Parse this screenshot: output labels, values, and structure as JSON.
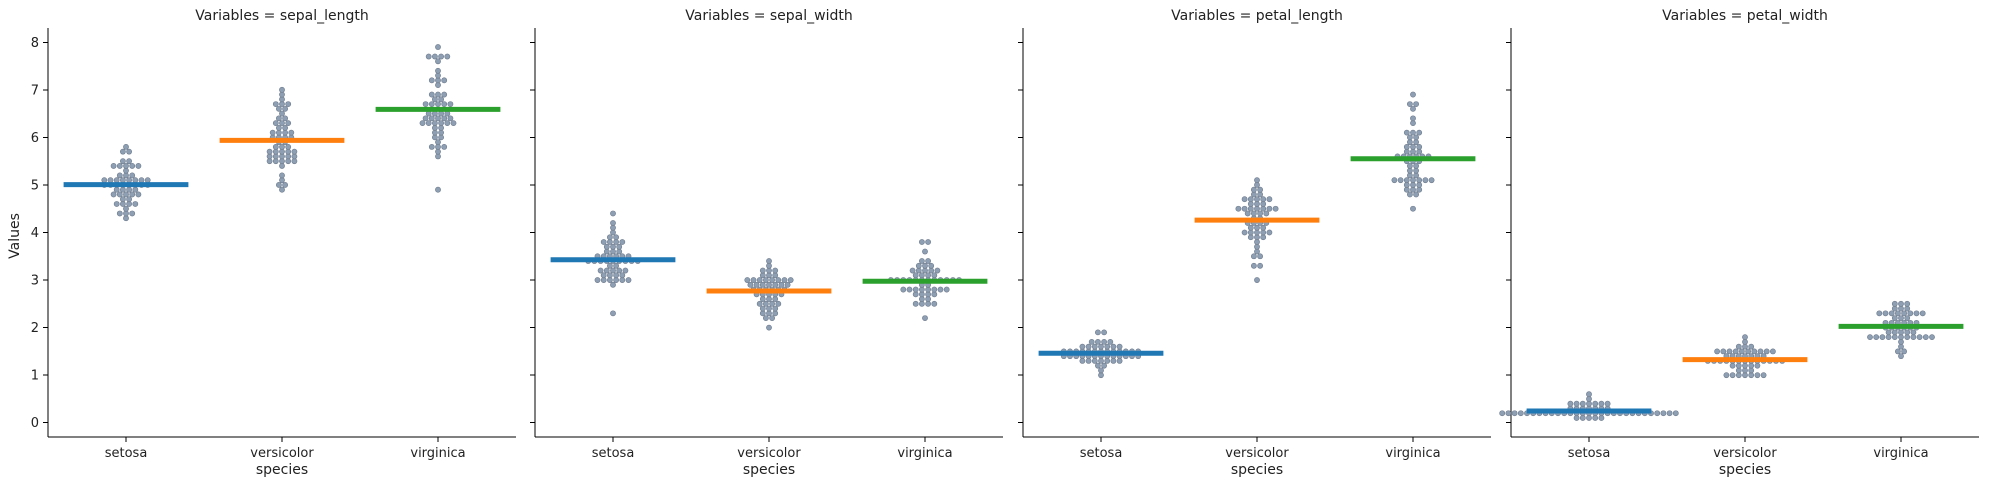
{
  "chart_data": {
    "type": "scatter",
    "subtype": "swarm-with-mean-lines",
    "row_label": "Variables",
    "xlabel": "species",
    "ylabel": "Values",
    "ylim": [
      -0.3,
      8.3
    ],
    "yticks": [
      0,
      1,
      2,
      3,
      4,
      5,
      6,
      7,
      8
    ],
    "categories": [
      "setosa",
      "versicolor",
      "virginica"
    ],
    "category_colors": [
      "#1f77b4",
      "#ff7f0e",
      "#2ca02c"
    ],
    "point_color": "#8f9fb3",
    "legend": "none",
    "grid": false,
    "panels": [
      {
        "title": "Variables = sepal_length",
        "variable": "sepal_length",
        "means": [
          5.006,
          5.936,
          6.588
        ],
        "groups": [
          [
            5.1,
            4.9,
            4.7,
            4.6,
            5.0,
            5.4,
            4.6,
            5.0,
            4.4,
            4.9,
            5.4,
            4.8,
            4.8,
            4.3,
            5.8,
            5.7,
            5.4,
            5.1,
            5.7,
            5.1,
            5.4,
            5.1,
            4.6,
            5.1,
            4.8,
            5.0,
            5.0,
            5.2,
            5.2,
            4.7,
            4.8,
            5.4,
            5.2,
            5.5,
            4.9,
            5.0,
            5.5,
            4.9,
            4.4,
            5.1,
            5.0,
            4.5,
            4.4,
            5.0,
            5.1,
            4.8,
            5.1,
            4.6,
            5.3,
            5.0
          ],
          [
            7.0,
            6.4,
            6.9,
            5.5,
            6.5,
            5.7,
            6.3,
            4.9,
            6.6,
            5.2,
            5.0,
            5.9,
            6.0,
            6.1,
            5.6,
            6.7,
            5.6,
            5.8,
            6.2,
            5.6,
            5.9,
            6.1,
            6.3,
            6.1,
            6.4,
            6.6,
            6.8,
            6.7,
            6.0,
            5.7,
            5.5,
            5.5,
            5.8,
            6.0,
            5.4,
            6.0,
            6.7,
            6.3,
            5.6,
            5.5,
            5.5,
            6.1,
            5.8,
            5.0,
            5.6,
            5.7,
            5.7,
            6.2,
            5.1,
            5.7
          ],
          [
            6.3,
            5.8,
            7.1,
            6.3,
            6.5,
            7.6,
            4.9,
            7.3,
            6.7,
            7.2,
            6.5,
            6.4,
            6.8,
            5.7,
            5.8,
            6.4,
            6.5,
            7.7,
            7.7,
            6.0,
            6.9,
            5.6,
            7.7,
            6.3,
            6.7,
            7.2,
            6.2,
            6.1,
            6.4,
            7.2,
            7.4,
            7.9,
            6.4,
            6.3,
            6.1,
            7.7,
            6.3,
            6.4,
            6.0,
            6.9,
            6.7,
            6.9,
            5.8,
            6.8,
            6.7,
            6.7,
            6.3,
            6.5,
            6.2,
            5.9
          ]
        ]
      },
      {
        "title": "Variables = sepal_width",
        "variable": "sepal_width",
        "means": [
          3.428,
          2.77,
          2.974
        ],
        "groups": [
          [
            3.5,
            3.0,
            3.2,
            3.1,
            3.6,
            3.9,
            3.4,
            3.4,
            2.9,
            3.1,
            3.7,
            3.4,
            3.0,
            3.0,
            4.0,
            4.4,
            3.9,
            3.5,
            3.8,
            3.8,
            3.4,
            3.7,
            3.6,
            3.3,
            3.4,
            3.0,
            3.4,
            3.5,
            3.4,
            3.2,
            3.1,
            3.4,
            4.1,
            4.2,
            3.1,
            3.2,
            3.5,
            3.6,
            3.0,
            3.4,
            3.5,
            2.3,
            3.2,
            3.5,
            3.8,
            3.0,
            3.8,
            3.2,
            3.7,
            3.3
          ],
          [
            3.2,
            3.2,
            3.1,
            2.3,
            2.8,
            2.8,
            3.3,
            2.4,
            2.9,
            2.7,
            2.0,
            3.0,
            2.2,
            2.9,
            2.9,
            3.1,
            3.0,
            2.7,
            2.2,
            2.5,
            3.2,
            2.8,
            2.5,
            2.8,
            2.9,
            3.0,
            2.8,
            3.0,
            2.9,
            2.6,
            2.4,
            2.4,
            2.7,
            2.7,
            3.0,
            3.4,
            3.1,
            2.3,
            3.0,
            2.5,
            2.6,
            3.0,
            2.6,
            2.3,
            2.7,
            3.0,
            2.9,
            2.9,
            2.5,
            2.8
          ],
          [
            3.3,
            2.7,
            3.0,
            2.9,
            3.0,
            3.0,
            2.5,
            2.9,
            2.5,
            3.6,
            3.2,
            2.7,
            3.0,
            2.5,
            2.8,
            3.2,
            3.0,
            3.8,
            2.6,
            2.2,
            3.2,
            2.8,
            2.8,
            2.7,
            3.3,
            3.2,
            2.8,
            3.0,
            2.8,
            3.0,
            2.8,
            3.8,
            2.8,
            2.8,
            2.6,
            3.0,
            3.4,
            3.1,
            3.0,
            3.1,
            3.1,
            3.1,
            2.7,
            3.2,
            3.3,
            3.0,
            2.5,
            3.0,
            3.4,
            3.0
          ]
        ]
      },
      {
        "title": "Variables = petal_length",
        "variable": "petal_length",
        "means": [
          1.462,
          4.26,
          5.552
        ],
        "groups": [
          [
            1.4,
            1.4,
            1.3,
            1.5,
            1.4,
            1.7,
            1.4,
            1.5,
            1.4,
            1.5,
            1.5,
            1.6,
            1.4,
            1.1,
            1.2,
            1.5,
            1.3,
            1.4,
            1.7,
            1.5,
            1.7,
            1.5,
            1.0,
            1.7,
            1.9,
            1.6,
            1.6,
            1.5,
            1.4,
            1.6,
            1.6,
            1.5,
            1.5,
            1.4,
            1.5,
            1.2,
            1.3,
            1.4,
            1.3,
            1.5,
            1.3,
            1.3,
            1.3,
            1.6,
            1.9,
            1.4,
            1.6,
            1.4,
            1.5,
            1.4
          ],
          [
            4.7,
            4.5,
            4.9,
            4.0,
            4.6,
            4.5,
            4.7,
            3.3,
            4.6,
            3.9,
            3.5,
            4.2,
            4.0,
            4.7,
            3.6,
            4.4,
            4.5,
            4.1,
            4.5,
            3.9,
            4.8,
            4.0,
            4.9,
            4.7,
            4.3,
            4.4,
            4.8,
            5.0,
            4.5,
            3.5,
            3.8,
            3.7,
            3.9,
            5.1,
            4.5,
            4.5,
            4.7,
            4.4,
            4.1,
            4.0,
            4.4,
            4.6,
            4.0,
            3.3,
            4.2,
            4.2,
            4.2,
            4.3,
            3.0,
            4.1
          ],
          [
            6.0,
            5.1,
            5.9,
            5.6,
            5.8,
            6.6,
            4.5,
            6.3,
            5.8,
            6.1,
            5.1,
            5.3,
            5.5,
            5.0,
            5.1,
            5.3,
            5.5,
            6.7,
            6.9,
            5.0,
            5.7,
            4.9,
            6.7,
            4.9,
            5.7,
            6.0,
            4.8,
            4.9,
            5.6,
            5.8,
            6.1,
            6.4,
            5.6,
            5.1,
            5.6,
            6.1,
            5.6,
            5.5,
            4.8,
            5.4,
            5.6,
            5.1,
            5.1,
            5.9,
            5.7,
            5.2,
            5.0,
            5.2,
            5.4,
            5.1
          ]
        ]
      },
      {
        "title": "Variables = petal_width",
        "variable": "petal_width",
        "means": [
          0.246,
          1.326,
          2.026
        ],
        "groups": [
          [
            0.2,
            0.2,
            0.2,
            0.2,
            0.2,
            0.4,
            0.3,
            0.2,
            0.2,
            0.1,
            0.2,
            0.2,
            0.1,
            0.1,
            0.2,
            0.4,
            0.4,
            0.3,
            0.3,
            0.3,
            0.2,
            0.4,
            0.2,
            0.5,
            0.2,
            0.2,
            0.4,
            0.2,
            0.2,
            0.2,
            0.2,
            0.4,
            0.1,
            0.2,
            0.2,
            0.2,
            0.2,
            0.1,
            0.2,
            0.2,
            0.3,
            0.3,
            0.2,
            0.6,
            0.4,
            0.3,
            0.2,
            0.2,
            0.2,
            0.2
          ],
          [
            1.4,
            1.5,
            1.5,
            1.3,
            1.5,
            1.3,
            1.6,
            1.0,
            1.3,
            1.4,
            1.0,
            1.5,
            1.0,
            1.4,
            1.3,
            1.4,
            1.5,
            1.0,
            1.5,
            1.1,
            1.8,
            1.3,
            1.5,
            1.2,
            1.3,
            1.4,
            1.4,
            1.7,
            1.5,
            1.0,
            1.1,
            1.0,
            1.2,
            1.6,
            1.5,
            1.6,
            1.5,
            1.3,
            1.3,
            1.3,
            1.2,
            1.4,
            1.2,
            1.0,
            1.3,
            1.2,
            1.3,
            1.3,
            1.1,
            1.3
          ],
          [
            2.5,
            1.9,
            2.1,
            1.8,
            2.2,
            2.1,
            1.7,
            1.8,
            1.8,
            2.5,
            2.0,
            1.9,
            2.1,
            2.0,
            2.4,
            2.3,
            1.8,
            2.2,
            2.3,
            1.5,
            2.3,
            2.0,
            2.0,
            1.8,
            2.1,
            1.8,
            1.8,
            1.8,
            2.1,
            1.6,
            1.9,
            2.0,
            2.2,
            1.5,
            1.4,
            2.3,
            2.4,
            1.8,
            1.8,
            2.1,
            2.4,
            2.3,
            1.9,
            2.3,
            2.5,
            2.3,
            1.9,
            2.0,
            2.3,
            1.8
          ]
        ]
      }
    ]
  }
}
